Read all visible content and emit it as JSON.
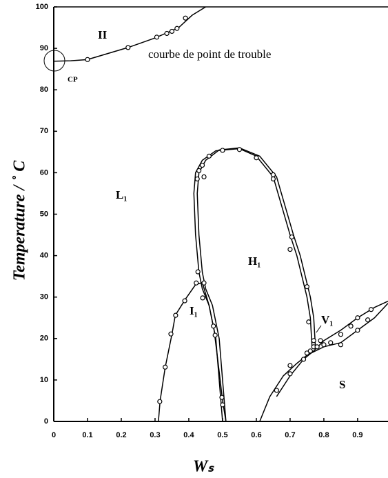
{
  "chart_data": {
    "type": "line",
    "xlabel": "Wₛ",
    "ylabel": "Temperature / ˚ C",
    "xlim": [
      0,
      0.99
    ],
    "xticks": [
      0,
      0.1,
      0.2,
      0.3,
      0.4,
      0.5,
      0.6,
      0.7,
      0.8,
      0.9
    ],
    "ylim": [
      0,
      100
    ],
    "yticks": [
      0,
      10,
      20,
      30,
      40,
      50,
      60,
      70,
      80,
      90,
      100
    ],
    "color": "#000000",
    "annotations": [
      "II",
      "courbe de point de trouble",
      "CP",
      "L₁",
      "H₁",
      "I₁",
      "V₁",
      "S"
    ],
    "series": [
      {
        "style": "line",
        "x": [
          0,
          0.05,
          0.1,
          0.22,
          0.3,
          0.37,
          0.41,
          0.45
        ],
        "values": [
          86.9,
          87,
          87.3,
          90.2,
          92.5,
          95,
          98,
          100
        ]
      },
      {
        "style": "line",
        "x": [
          0.31,
          0.315,
          0.33,
          0.35,
          0.36,
          0.39,
          0.42,
          0.44,
          0.46,
          0.475,
          0.49,
          0.5,
          0.51
        ],
        "values": [
          0,
          5,
          13,
          21,
          25.6,
          29.5,
          33,
          33.5,
          28,
          22,
          12,
          5,
          0
        ]
      },
      {
        "style": "line",
        "x": [
          0.5,
          0.495,
          0.48,
          0.46,
          0.44,
          0.43,
          0.42,
          0.415,
          0.42,
          0.44,
          0.48,
          0.55,
          0.6,
          0.65,
          0.7,
          0.72,
          0.75,
          0.76,
          0.765
        ],
        "values": [
          0,
          5,
          20,
          28,
          32,
          36,
          45,
          55,
          60,
          63,
          65.3,
          65.8,
          64,
          59,
          45,
          40,
          30,
          25,
          18
        ]
      },
      {
        "style": "line",
        "x": [
          0.51,
          0.505,
          0.49,
          0.47,
          0.45,
          0.44,
          0.43,
          0.425,
          0.43,
          0.45,
          0.49,
          0.55,
          0.61,
          0.66,
          0.71,
          0.73,
          0.76,
          0.77,
          0.775
        ],
        "values": [
          0,
          5,
          20,
          28,
          32,
          36,
          45,
          55,
          60,
          63,
          65.5,
          66,
          64,
          59,
          45,
          40,
          30,
          25,
          18
        ]
      },
      {
        "style": "line",
        "x": [
          0.61,
          0.64,
          0.68,
          0.72,
          0.75,
          0.8,
          0.85,
          0.9,
          0.95,
          0.99
        ],
        "values": [
          0,
          6,
          11,
          14,
          16,
          18,
          19,
          22,
          25,
          28.5
        ]
      },
      {
        "style": "line",
        "x": [
          0.66,
          0.7,
          0.74,
          0.77,
          0.8,
          0.85,
          0.9,
          0.95,
          0.99
        ],
        "values": [
          6,
          11,
          15,
          17,
          19.5,
          22,
          25,
          27.5,
          29
        ]
      },
      {
        "style": "markers",
        "x": [
          0.1,
          0.22,
          0.305,
          0.335,
          0.35,
          0.365,
          0.39
        ],
        "values": [
          87.3,
          90.2,
          92.7,
          93.6,
          94.1,
          94.8,
          97.3
        ]
      },
      {
        "style": "markers",
        "x": [
          0.314,
          0.33,
          0.347,
          0.361,
          0.388,
          0.422,
          0.427,
          0.445,
          0.441,
          0.473,
          0.478,
          0.498,
          0.5
        ],
        "values": [
          4.8,
          13.1,
          21.1,
          25.6,
          29.1,
          33.4,
          36.1,
          33.4,
          29.8,
          23,
          20.8,
          5.8,
          4
        ]
      },
      {
        "style": "markers",
        "x": [
          0.425,
          0.43,
          0.445,
          0.44,
          0.46,
          0.5,
          0.55,
          0.6,
          0.65,
          0.65,
          0.705,
          0.7,
          0.75,
          0.755,
          0.77,
          0.77
        ],
        "values": [
          58.5,
          60.5,
          59,
          61.8,
          64,
          65.4,
          65.6,
          63.6,
          59.5,
          58.5,
          44.5,
          41.5,
          32.5,
          24,
          19.5,
          18
        ]
      },
      {
        "style": "markers",
        "x": [
          0.66,
          0.7,
          0.7,
          0.74,
          0.75,
          0.76,
          0.78,
          0.79,
          0.8,
          0.82,
          0.85,
          0.85,
          0.88,
          0.9,
          0.9,
          0.93,
          0.94
        ],
        "values": [
          7.5,
          11.5,
          13.5,
          15,
          16.5,
          17,
          18,
          19.5,
          18.5,
          19,
          18.5,
          21,
          23,
          22,
          25,
          24.5,
          27
        ]
      }
    ]
  }
}
